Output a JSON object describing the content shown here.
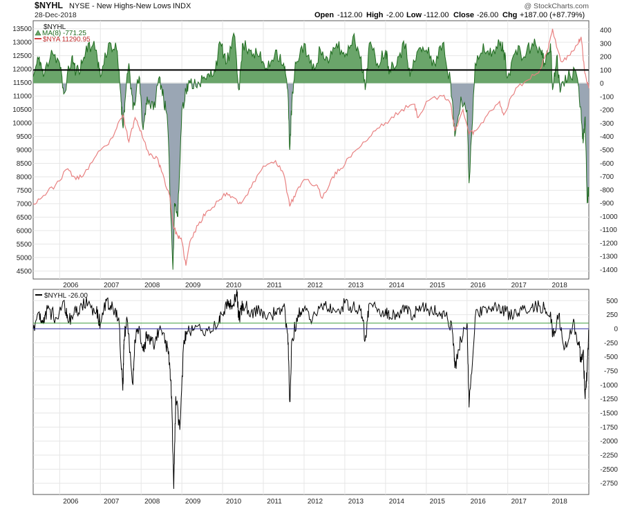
{
  "header": {
    "symbol": "$NYHL",
    "description": "NYSE - New Highs-New Lows",
    "exchange": "INDX",
    "date": "28-Dec-2018",
    "copyright": "@ StockCharts.com",
    "ohlc": {
      "open_label": "Open",
      "open": "-112.00",
      "high_label": "High",
      "high": "-2.00",
      "low_label": "Low",
      "low": "-112.00",
      "close_label": "Close",
      "close": "-26.00",
      "chg_label": "Chg",
      "chg": "+187.00 (+87.79%)"
    }
  },
  "colors": {
    "ma_fill_positive": "#6aa56a",
    "ma_fill_negative": "#9aa6b4",
    "ma_line": "#1f6b1f",
    "nya_line": "#e88080",
    "nyhl_line": "#000000",
    "upper_ref_line": "#3a9a3a",
    "zero_line": "#2a2aa0",
    "grid": "#e6e6e6"
  },
  "chart_data": [
    {
      "type": "area",
      "legend": {
        "title": "$NYHL",
        "ma_label": "MA(8) -771.25",
        "nya_label": "$NYA 11290.95",
        "placement": "top-left"
      },
      "x_ticks": [
        "2006",
        "2007",
        "2008",
        "2009",
        "2010",
        "2011",
        "2012",
        "2013",
        "2014",
        "2015",
        "2016",
        "2017",
        "2018"
      ],
      "x_range": [
        2005.35,
        2018.99
      ],
      "left_axis": {
        "ticks": [
          13500,
          13000,
          12500,
          12000,
          11500,
          11000,
          10500,
          10000,
          9500,
          9000,
          8500,
          8000,
          7500,
          7000,
          6500,
          6000,
          5500,
          5000,
          4500
        ],
        "range": [
          4200,
          13800
        ]
      },
      "right_axis": {
        "ticks": [
          400,
          300,
          200,
          100,
          0,
          -100,
          -200,
          -300,
          -400,
          -500,
          -600,
          -700,
          -800,
          -900,
          -1000,
          -1100,
          -1200,
          -1300,
          -1400
        ],
        "range": [
          -1470,
          470
        ]
      },
      "reference_line": 100,
      "series": [
        {
          "name": "MA(8)",
          "axis": "right",
          "x": [
            2005.35,
            2005.5,
            2005.6,
            2005.8,
            2006.0,
            2006.1,
            2006.3,
            2006.4,
            2006.55,
            2006.7,
            2006.9,
            2007.0,
            2007.2,
            2007.4,
            2007.5,
            2007.55,
            2007.6,
            2007.7,
            2007.8,
            2007.95,
            2008.05,
            2008.15,
            2008.3,
            2008.45,
            2008.55,
            2008.65,
            2008.78,
            2008.82,
            2008.9,
            2009.0,
            2009.1,
            2009.2,
            2009.4,
            2009.6,
            2009.8,
            2009.95,
            2010.1,
            2010.3,
            2010.4,
            2010.5,
            2010.7,
            2010.9,
            2011.1,
            2011.3,
            2011.5,
            2011.6,
            2011.65,
            2011.7,
            2011.8,
            2012.0,
            2012.2,
            2012.4,
            2012.6,
            2012.8,
            2013.0,
            2013.2,
            2013.4,
            2013.5,
            2013.6,
            2013.8,
            2014.0,
            2014.1,
            2014.3,
            2014.5,
            2014.6,
            2014.8,
            2015.0,
            2015.2,
            2015.4,
            2015.6,
            2015.7,
            2015.85,
            2016.0,
            2016.05,
            2016.2,
            2016.4,
            2016.6,
            2016.8,
            2016.9,
            2017.0,
            2017.2,
            2017.4,
            2017.6,
            2017.8,
            2017.9,
            2018.05,
            2018.1,
            2018.2,
            2018.3,
            2018.5,
            2018.7,
            2018.8,
            2018.85,
            2018.9,
            2018.95,
            2018.99
          ],
          "values": [
            50,
            200,
            50,
            250,
            150,
            -80,
            200,
            80,
            150,
            300,
            250,
            50,
            300,
            250,
            -80,
            -320,
            -150,
            150,
            -200,
            50,
            -350,
            -100,
            -200,
            50,
            -100,
            -300,
            -1400,
            -900,
            -1000,
            -200,
            -50,
            0,
            10,
            30,
            100,
            300,
            150,
            350,
            -50,
            300,
            250,
            200,
            100,
            250,
            150,
            -50,
            -500,
            -150,
            150,
            300,
            100,
            250,
            150,
            300,
            200,
            350,
            200,
            -50,
            300,
            150,
            250,
            100,
            200,
            300,
            50,
            250,
            250,
            150,
            300,
            0,
            -400,
            -100,
            -200,
            -750,
            150,
            300,
            200,
            300,
            250,
            50,
            250,
            200,
            300,
            250,
            150,
            300,
            -50,
            200,
            -50,
            100,
            50,
            -200,
            -450,
            -250,
            -900,
            -780
          ]
        },
        {
          "name": "$NYA",
          "axis": "left",
          "x": [
            2005.35,
            2005.6,
            2005.9,
            2006.2,
            2006.4,
            2006.6,
            2006.9,
            2007.2,
            2007.4,
            2007.55,
            2007.7,
            2007.85,
            2008.0,
            2008.2,
            2008.4,
            2008.5,
            2008.7,
            2008.8,
            2008.9,
            2009.0,
            2009.1,
            2009.2,
            2009.4,
            2009.6,
            2009.9,
            2010.1,
            2010.3,
            2010.45,
            2010.7,
            2011.0,
            2011.3,
            2011.5,
            2011.65,
            2011.8,
            2012.0,
            2012.3,
            2012.45,
            2012.7,
            2012.9,
            2013.2,
            2013.5,
            2013.8,
            2014.1,
            2014.4,
            2014.7,
            2014.8,
            2015.0,
            2015.4,
            2015.6,
            2015.7,
            2015.9,
            2016.05,
            2016.2,
            2016.5,
            2016.8,
            2016.9,
            2017.2,
            2017.5,
            2017.8,
            2018.0,
            2018.1,
            2018.3,
            2018.5,
            2018.7,
            2018.8,
            2018.88,
            2018.95,
            2018.99
          ],
          "values": [
            7000,
            7300,
            7700,
            8300,
            7900,
            8100,
            8800,
            9200,
            9800,
            10300,
            9300,
            10200,
            9700,
            8800,
            8700,
            8200,
            7300,
            6100,
            5800,
            5600,
            4700,
            5600,
            6200,
            6700,
            7100,
            7400,
            7200,
            7000,
            7600,
            8400,
            8600,
            8100,
            6900,
            7400,
            7900,
            7700,
            7200,
            8000,
            8300,
            8900,
            9300,
            9800,
            10100,
            10500,
            10700,
            10200,
            10800,
            11000,
            10700,
            9700,
            10500,
            9600,
            9700,
            10300,
            10800,
            10300,
            11300,
            11600,
            12000,
            12800,
            13500,
            12300,
            12500,
            12900,
            13200,
            12000,
            11500,
            11290
          ]
        }
      ]
    },
    {
      "type": "line",
      "legend": {
        "label": "$NYHL -26.00",
        "placement": "top-left"
      },
      "x_ticks": [
        "2006",
        "2007",
        "2008",
        "2009",
        "2010",
        "2011",
        "2012",
        "2013",
        "2014",
        "2015",
        "2016",
        "2017",
        "2018"
      ],
      "x_range": [
        2005.35,
        2018.99
      ],
      "y_axis": {
        "ticks": [
          500,
          250,
          0,
          -250,
          -500,
          -750,
          -1000,
          -1250,
          -1500,
          -1750,
          -2000,
          -2250,
          -2500,
          -2750
        ],
        "range": [
          -2950,
          700
        ]
      },
      "reference_lines": [
        100,
        0
      ],
      "series": [
        {
          "name": "$NYHL",
          "x": [
            2005.35,
            2005.5,
            2005.6,
            2005.7,
            2005.9,
            2006.1,
            2006.2,
            2006.35,
            2006.5,
            2006.7,
            2006.9,
            2007.0,
            2007.15,
            2007.3,
            2007.45,
            2007.55,
            2007.58,
            2007.65,
            2007.8,
            2007.85,
            2007.95,
            2008.05,
            2008.15,
            2008.3,
            2008.45,
            2008.6,
            2008.7,
            2008.75,
            2008.8,
            2008.85,
            2008.95,
            2009.05,
            2009.15,
            2009.3,
            2009.6,
            2009.9,
            2010.0,
            2010.15,
            2010.25,
            2010.35,
            2010.4,
            2010.5,
            2010.7,
            2010.9,
            2011.1,
            2011.3,
            2011.5,
            2011.6,
            2011.65,
            2011.7,
            2011.85,
            2012.0,
            2012.2,
            2012.4,
            2012.6,
            2012.8,
            2013.0,
            2013.2,
            2013.4,
            2013.5,
            2013.6,
            2013.8,
            2014.0,
            2014.1,
            2014.3,
            2014.5,
            2014.7,
            2014.9,
            2015.1,
            2015.3,
            2015.5,
            2015.65,
            2015.7,
            2015.85,
            2016.0,
            2016.05,
            2016.2,
            2016.4,
            2016.6,
            2016.8,
            2016.95,
            2017.1,
            2017.3,
            2017.5,
            2017.7,
            2017.9,
            2018.05,
            2018.1,
            2018.25,
            2018.4,
            2018.6,
            2018.75,
            2018.8,
            2018.85,
            2018.9,
            2018.95,
            2018.99
          ],
          "values": [
            0,
            300,
            100,
            350,
            200,
            500,
            150,
            250,
            400,
            450,
            300,
            100,
            500,
            400,
            200,
            -1100,
            -200,
            200,
            -1000,
            -200,
            50,
            -400,
            -100,
            -300,
            0,
            -200,
            -600,
            -1200,
            -2850,
            -1200,
            -1800,
            -200,
            -50,
            -20,
            0,
            100,
            250,
            500,
            400,
            700,
            150,
            450,
            300,
            350,
            200,
            300,
            400,
            -100,
            -1300,
            -200,
            250,
            350,
            150,
            400,
            350,
            300,
            450,
            400,
            350,
            -200,
            450,
            300,
            350,
            200,
            300,
            350,
            250,
            400,
            350,
            250,
            300,
            -100,
            -700,
            -200,
            100,
            -1400,
            200,
            400,
            300,
            400,
            300,
            250,
            350,
            300,
            400,
            350,
            300,
            -150,
            250,
            -350,
            100,
            -300,
            -600,
            -400,
            -1250,
            -700,
            -26
          ]
        }
      ]
    }
  ]
}
